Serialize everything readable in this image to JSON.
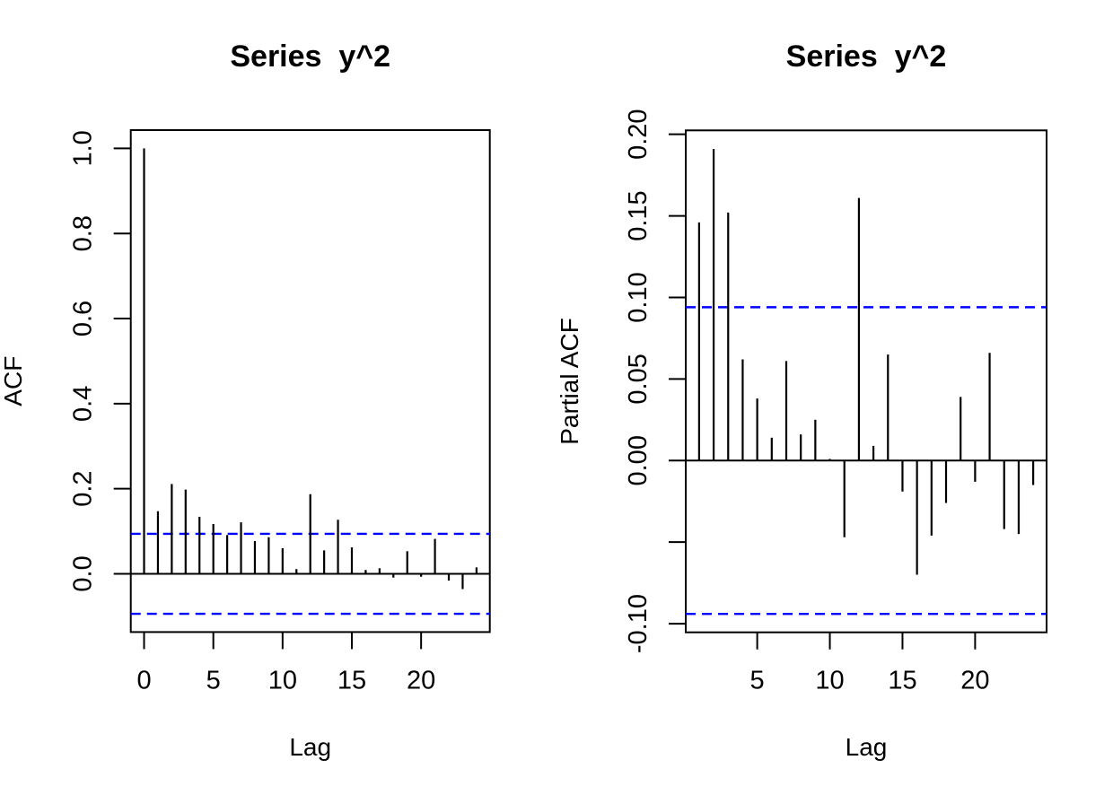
{
  "figure": {
    "background": "#ffffff",
    "colors": {
      "bar": "#000000",
      "axis": "#000000",
      "conf_line": "#0000ff"
    }
  },
  "chart_data": [
    {
      "id": "acf",
      "type": "bar",
      "title": "Series  y^2",
      "xlabel": "Lag",
      "ylabel": "ACF",
      "lags": [
        0,
        1,
        2,
        3,
        4,
        5,
        6,
        7,
        8,
        9,
        10,
        11,
        12,
        13,
        14,
        15,
        16,
        17,
        18,
        19,
        20,
        21,
        22,
        23,
        24
      ],
      "values": [
        1.0,
        0.147,
        0.211,
        0.198,
        0.134,
        0.117,
        0.091,
        0.121,
        0.077,
        0.086,
        0.06,
        0.011,
        0.187,
        0.055,
        0.127,
        0.062,
        0.009,
        0.013,
        -0.009,
        0.053,
        -0.007,
        0.082,
        -0.016,
        -0.036,
        0.015
      ],
      "conf_bound": 0.094,
      "conf_line_style": "dashed",
      "xticks": [
        0,
        5,
        10,
        15,
        20
      ],
      "xtick_labels": [
        "0",
        "5",
        "10",
        "15",
        "20"
      ],
      "yticks": [
        0.0,
        0.2,
        0.4,
        0.6,
        0.8,
        1.0
      ],
      "ytick_labels": [
        "0.0",
        "0.2",
        "0.4",
        "0.6",
        "0.8",
        "1.0"
      ],
      "xlim": [
        -0.96,
        24.96
      ],
      "ylim": [
        -0.137,
        1.043
      ],
      "grid": false,
      "legend": null
    },
    {
      "id": "pacf",
      "type": "bar",
      "title": "Series  y^2",
      "xlabel": "Lag",
      "ylabel": "Partial ACF",
      "lags": [
        1,
        2,
        3,
        4,
        5,
        6,
        7,
        8,
        9,
        10,
        11,
        12,
        13,
        14,
        15,
        16,
        17,
        18,
        19,
        20,
        21,
        22,
        23,
        24
      ],
      "values": [
        0.146,
        0.191,
        0.152,
        0.062,
        0.038,
        0.014,
        0.061,
        0.016,
        0.025,
        0.001,
        -0.047,
        0.161,
        0.009,
        0.065,
        -0.019,
        -0.07,
        -0.046,
        -0.026,
        0.039,
        -0.013,
        0.066,
        -0.042,
        -0.045,
        -0.015
      ],
      "conf_bound": 0.094,
      "conf_line_style": "dashed",
      "xticks": [
        5,
        10,
        15,
        20
      ],
      "xtick_labels": [
        "5",
        "10",
        "15",
        "20"
      ],
      "yticks": [
        -0.1,
        -0.05,
        0.0,
        0.05,
        0.1,
        0.15,
        0.2
      ],
      "ytick_labels": [
        "-0.10",
        "",
        "0.00",
        "0.05",
        "0.10",
        "0.15",
        "0.20"
      ],
      "xlim": [
        0.08,
        24.92
      ],
      "ylim": [
        -0.1053,
        0.2024
      ],
      "grid": false,
      "legend": null
    }
  ]
}
